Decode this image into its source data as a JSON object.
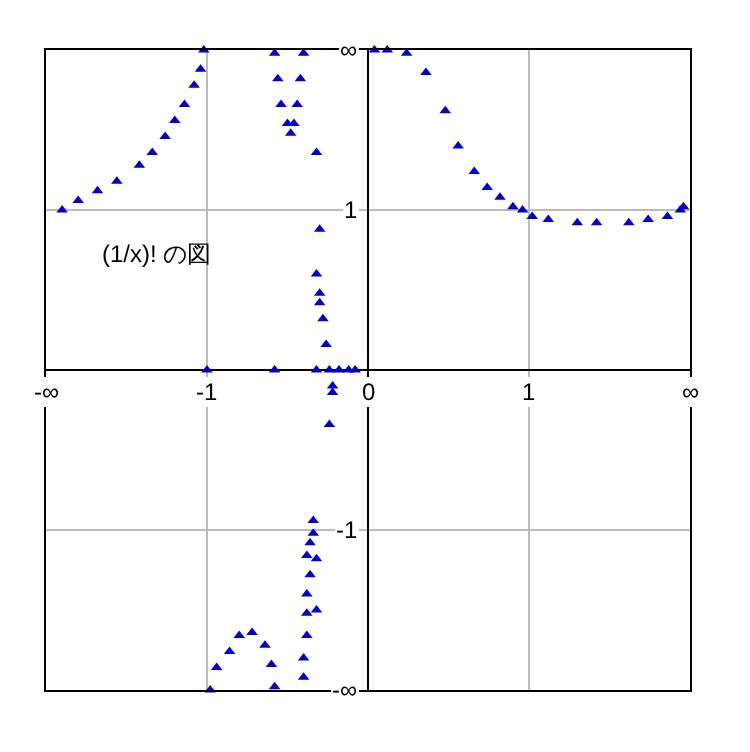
{
  "chart_data": {
    "type": "scatter",
    "annotations": [
      "(1/x)! の図"
    ],
    "x": [
      -0.95,
      -0.9,
      -0.84,
      -0.78,
      -0.71,
      -0.67,
      -0.63,
      -0.6,
      -0.57,
      -0.54,
      -0.52,
      -0.51,
      -0.29,
      -0.28,
      -0.27,
      -0.25,
      -0.24,
      -0.23,
      -0.22,
      -0.21,
      -0.2,
      -0.16,
      -0.15,
      -0.16,
      -0.15,
      -0.15,
      -0.14,
      -0.13,
      -0.5,
      -0.29,
      -0.16,
      -0.12,
      -0.09,
      -0.06,
      -0.04,
      0.02,
      0.06,
      0.12,
      0.18,
      0.24,
      0.28,
      0.33,
      0.37,
      0.41,
      0.45,
      0.48,
      0.51,
      0.56,
      0.65,
      0.71,
      0.81,
      0.87,
      0.93,
      0.97,
      0.98,
      -0.11,
      -0.11,
      -0.12,
      -0.17,
      -0.17,
      -0.18,
      -0.19,
      -0.16,
      -0.18,
      -0.19,
      -0.16,
      -0.19,
      -0.19,
      -0.2,
      -0.2,
      -0.49,
      -0.47,
      -0.43,
      -0.4,
      -0.36,
      -0.32,
      -0.3,
      -0.29
    ],
    "series": [
      {
        "color": "#0000cc",
        "values": [
          0.5,
          0.53,
          0.56,
          0.59,
          0.64,
          0.68,
          0.73,
          0.78,
          0.83,
          0.89,
          0.94,
          1.0,
          0.99,
          0.91,
          0.83,
          0.77,
          0.74,
          0.77,
          0.83,
          0.91,
          0.99,
          0.68,
          0.44,
          0.3,
          0.24,
          0.21,
          0.16,
          0.08,
          0,
          0,
          0,
          0,
          0,
          0,
          0,
          1.0,
          1.0,
          0.99,
          0.93,
          0.81,
          0.7,
          0.62,
          0.57,
          0.54,
          0.51,
          0.5,
          0.48,
          0.47,
          0.46,
          0.46,
          0.46,
          0.47,
          0.48,
          0.5,
          0.51,
          -0.05,
          -0.07,
          -0.17,
          -0.47,
          -0.51,
          -0.54,
          -0.58,
          -0.59,
          -0.64,
          -0.7,
          -0.75,
          -0.76,
          -0.83,
          -0.9,
          -0.96,
          -1.0,
          -0.93,
          -0.88,
          -0.83,
          -0.82,
          -0.86,
          -0.92,
          -0.99
        ]
      }
    ],
    "marker": "triangle",
    "grid": true,
    "xlim": [
      -1,
      1
    ],
    "ylim": [
      -1,
      1
    ],
    "xticks": [
      {
        "value": -1,
        "label": "-∞"
      },
      {
        "value": -0.5,
        "label": "-1"
      },
      {
        "value": 0,
        "label": "0"
      },
      {
        "value": 0.5,
        "label": "1"
      },
      {
        "value": 1,
        "label": "∞"
      }
    ],
    "yticks": [
      {
        "value": 1,
        "label": "∞"
      },
      {
        "value": 0.5,
        "label": "1"
      },
      {
        "value": -0.5,
        "label": "-1"
      },
      {
        "value": -1,
        "label": "-∞"
      }
    ]
  }
}
